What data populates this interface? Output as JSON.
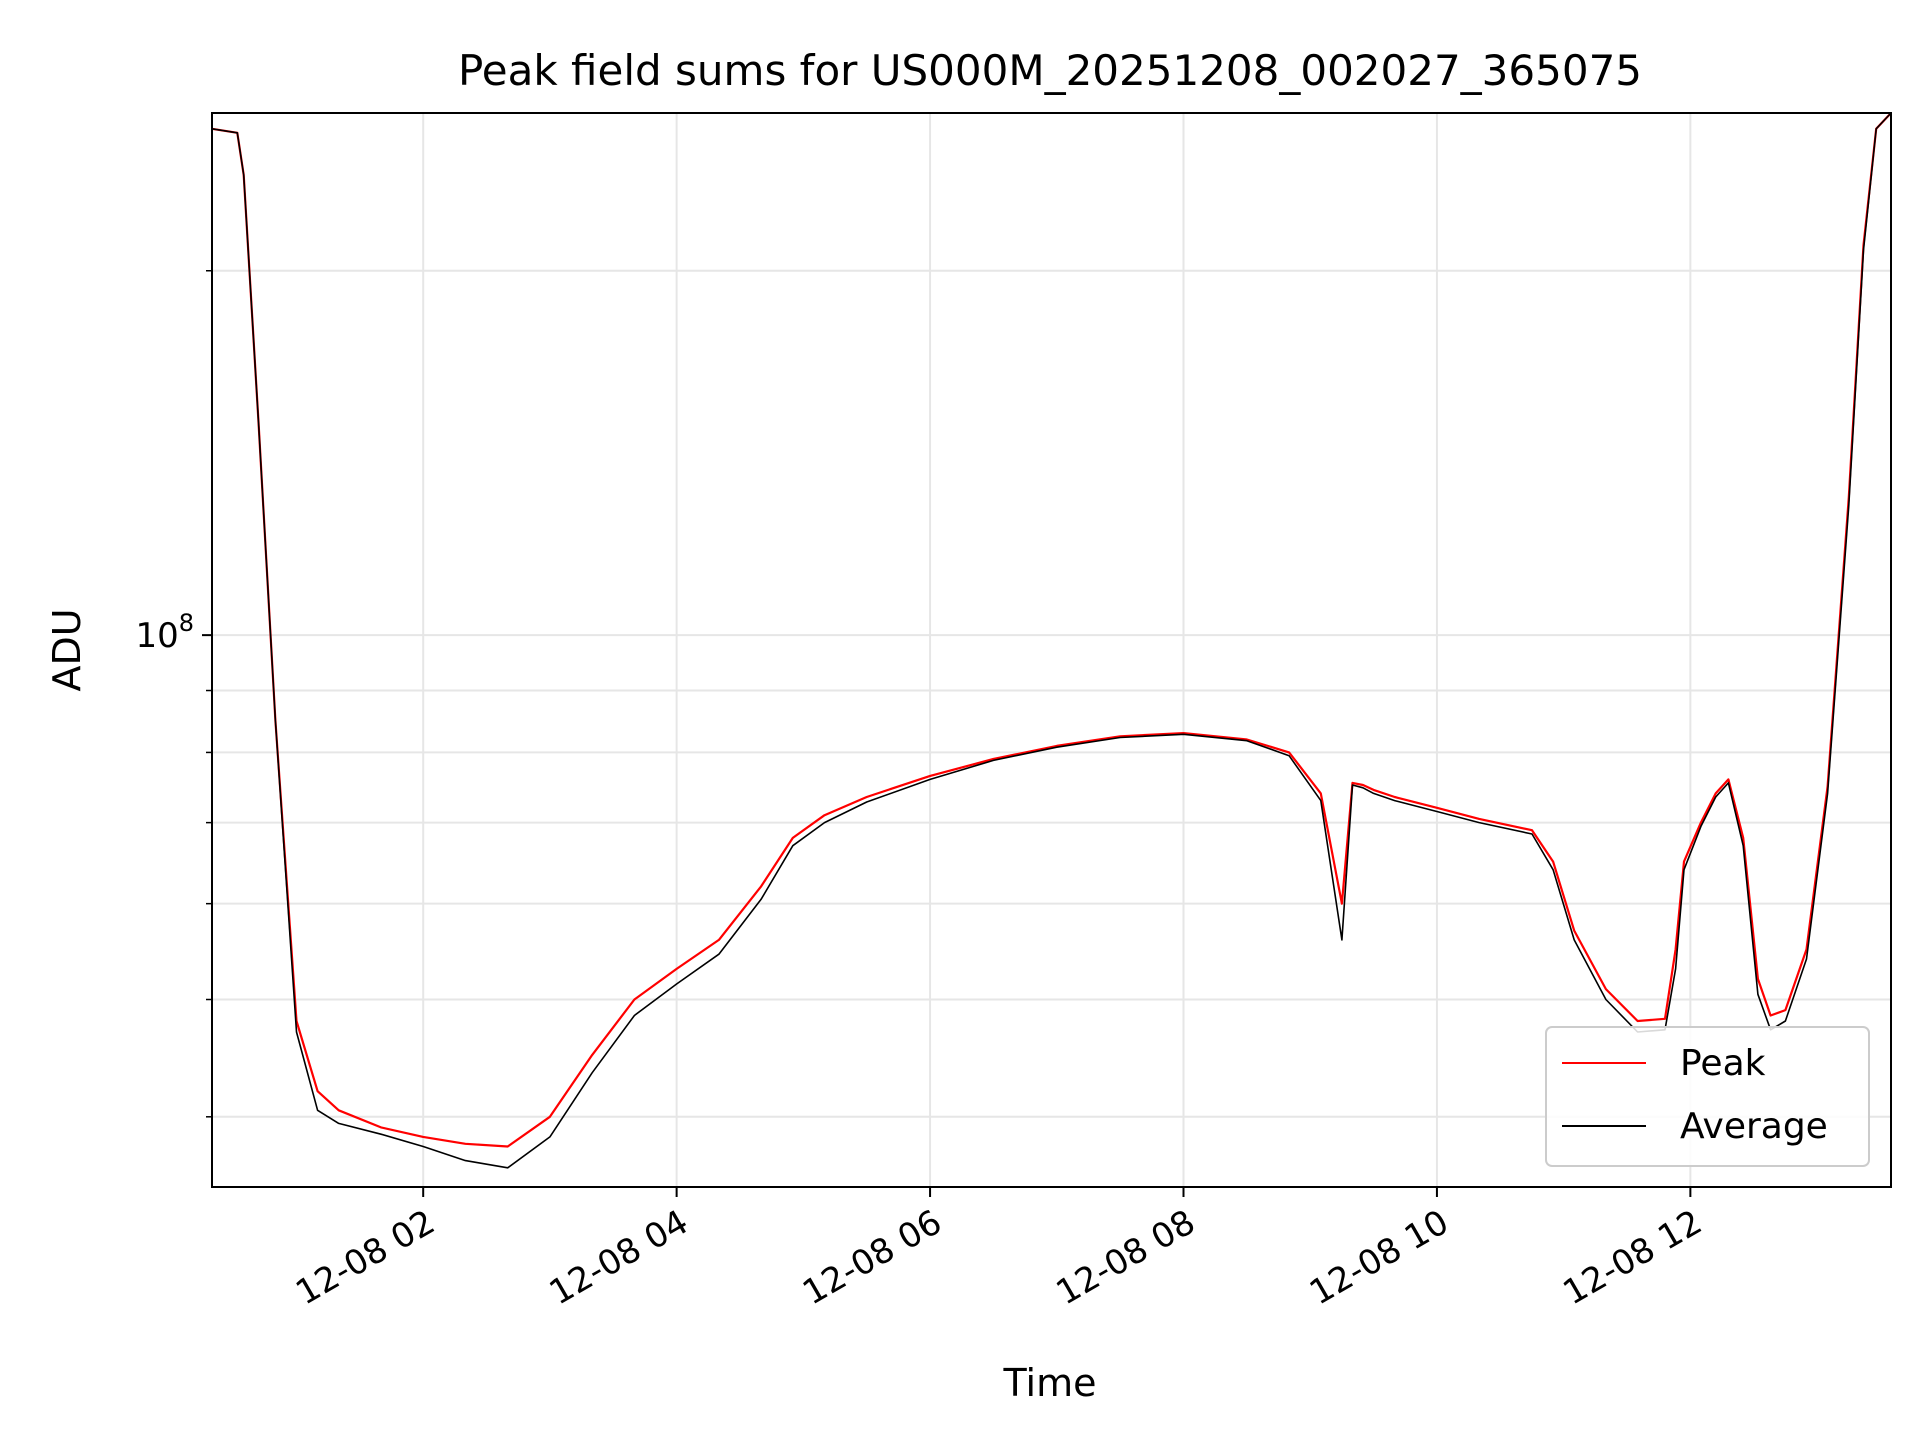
{
  "chart_data": {
    "type": "line",
    "title": "Peak field sums for US000M_20251208_002027_365075",
    "xlabel": "Time",
    "ylabel": "ADU",
    "xlim": [
      "2025-12-08 00:20",
      "2025-12-08 13:35"
    ],
    "ylim": [
      35000000,
      270000000
    ],
    "yscale": "log",
    "grid": true,
    "legend_position": "lower-right",
    "x_ticks": [
      "12-08 02",
      "12-08 04",
      "12-08 06",
      "12-08 08",
      "12-08 10",
      "12-08 12"
    ],
    "y_major_tick_label": "10^8",
    "y_major_tick_value": 100000000,
    "y_minor_ticks": [
      40000000,
      50000000,
      60000000,
      70000000,
      80000000,
      90000000,
      200000000
    ],
    "series": [
      {
        "name": "Peak",
        "color": "#ff0000",
        "x": [
          "2025-12-08 00:20",
          "2025-12-08 00:32",
          "2025-12-08 00:35",
          "2025-12-08 00:42",
          "2025-12-08 00:50",
          "2025-12-08 01:00",
          "2025-12-08 01:10",
          "2025-12-08 01:20",
          "2025-12-08 01:40",
          "2025-12-08 02:00",
          "2025-12-08 02:20",
          "2025-12-08 02:40",
          "2025-12-08 03:00",
          "2025-12-08 03:20",
          "2025-12-08 03:40",
          "2025-12-08 04:00",
          "2025-12-08 04:20",
          "2025-12-08 04:40",
          "2025-12-08 04:55",
          "2025-12-08 05:10",
          "2025-12-08 05:30",
          "2025-12-08 06:00",
          "2025-12-08 06:30",
          "2025-12-08 07:00",
          "2025-12-08 07:30",
          "2025-12-08 08:00",
          "2025-12-08 08:30",
          "2025-12-08 08:50",
          "2025-12-08 09:05",
          "2025-12-08 09:15",
          "2025-12-08 09:20",
          "2025-12-08 09:25",
          "2025-12-08 09:30",
          "2025-12-08 09:40",
          "2025-12-08 10:00",
          "2025-12-08 10:20",
          "2025-12-08 10:45",
          "2025-12-08 10:55",
          "2025-12-08 11:05",
          "2025-12-08 11:20",
          "2025-12-08 11:35",
          "2025-12-08 11:48",
          "2025-12-08 11:53",
          "2025-12-08 11:57",
          "2025-12-08 12:05",
          "2025-12-08 12:12",
          "2025-12-08 12:18",
          "2025-12-08 12:25",
          "2025-12-08 12:32",
          "2025-12-08 12:38",
          "2025-12-08 12:45",
          "2025-12-08 12:55",
          "2025-12-08 13:05",
          "2025-12-08 13:15",
          "2025-12-08 13:22",
          "2025-12-08 13:28",
          "2025-12-08 13:35"
        ],
        "y": [
          262000000,
          260000000,
          240000000,
          150000000,
          85000000,
          48000000,
          42000000,
          40500000,
          39200000,
          38500000,
          38000000,
          37800000,
          40000000,
          45000000,
          50000000,
          53000000,
          56000000,
          62000000,
          68000000,
          71000000,
          73500000,
          76500000,
          79000000,
          81000000,
          82500000,
          83000000,
          82000000,
          80000000,
          74000000,
          60000000,
          75500000,
          75200000,
          74500000,
          73500000,
          72000000,
          70500000,
          69000000,
          65000000,
          57000000,
          51000000,
          48000000,
          48200000,
          55000000,
          65000000,
          70000000,
          74000000,
          76000000,
          68000000,
          52000000,
          48500000,
          49000000,
          55000000,
          75000000,
          130000000,
          210000000,
          262000000,
          270000000
        ]
      },
      {
        "name": "Average",
        "color": "#000000",
        "x": [
          "2025-12-08 00:20",
          "2025-12-08 00:32",
          "2025-12-08 00:35",
          "2025-12-08 00:42",
          "2025-12-08 00:50",
          "2025-12-08 01:00",
          "2025-12-08 01:10",
          "2025-12-08 01:20",
          "2025-12-08 01:40",
          "2025-12-08 02:00",
          "2025-12-08 02:20",
          "2025-12-08 02:40",
          "2025-12-08 03:00",
          "2025-12-08 03:20",
          "2025-12-08 03:40",
          "2025-12-08 04:00",
          "2025-12-08 04:20",
          "2025-12-08 04:40",
          "2025-12-08 04:55",
          "2025-12-08 05:10",
          "2025-12-08 05:30",
          "2025-12-08 06:00",
          "2025-12-08 06:30",
          "2025-12-08 07:00",
          "2025-12-08 07:30",
          "2025-12-08 08:00",
          "2025-12-08 08:30",
          "2025-12-08 08:50",
          "2025-12-08 09:05",
          "2025-12-08 09:15",
          "2025-12-08 09:20",
          "2025-12-08 09:25",
          "2025-12-08 09:30",
          "2025-12-08 09:40",
          "2025-12-08 10:00",
          "2025-12-08 10:20",
          "2025-12-08 10:45",
          "2025-12-08 10:55",
          "2025-12-08 11:05",
          "2025-12-08 11:20",
          "2025-12-08 11:35",
          "2025-12-08 11:48",
          "2025-12-08 11:53",
          "2025-12-08 11:57",
          "2025-12-08 12:05",
          "2025-12-08 12:12",
          "2025-12-08 12:18",
          "2025-12-08 12:25",
          "2025-12-08 12:32",
          "2025-12-08 12:38",
          "2025-12-08 12:45",
          "2025-12-08 12:55",
          "2025-12-08 13:05",
          "2025-12-08 13:15",
          "2025-12-08 13:22",
          "2025-12-08 13:28",
          "2025-12-08 13:35"
        ],
        "y": [
          262000000,
          260000000,
          240000000,
          150000000,
          85000000,
          47000000,
          40500000,
          39500000,
          38700000,
          37800000,
          36800000,
          36300000,
          38500000,
          43500000,
          48500000,
          51500000,
          54500000,
          60500000,
          67000000,
          70000000,
          72800000,
          76000000,
          78800000,
          80800000,
          82300000,
          82800000,
          81800000,
          79500000,
          73000000,
          56000000,
          75200000,
          74800000,
          74000000,
          73000000,
          71500000,
          70000000,
          68500000,
          64000000,
          56000000,
          50000000,
          47000000,
          47200000,
          53000000,
          64000000,
          69500000,
          73500000,
          75500000,
          67000000,
          50500000,
          47200000,
          48000000,
          54000000,
          74000000,
          128000000,
          208000000,
          262000000,
          270000000
        ]
      }
    ]
  }
}
